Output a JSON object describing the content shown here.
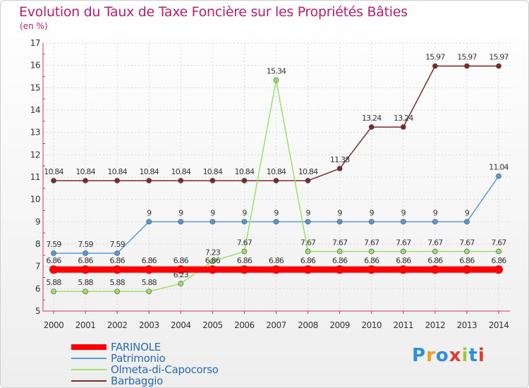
{
  "chart_data": {
    "type": "line",
    "title": "Evolution du Taux de Taxe Foncière sur les Propriétés Bâties",
    "ylabel": "(en %)",
    "xlabel": "",
    "ylim": [
      5,
      17
    ],
    "yticks": [
      "5",
      "6",
      "7",
      "8",
      "9",
      "10",
      "11",
      "12",
      "13",
      "14",
      "15",
      "16",
      "17"
    ],
    "categories": [
      "2000",
      "2001",
      "2002",
      "2003",
      "2004",
      "2005",
      "2006",
      "2007",
      "2008",
      "2009",
      "2010",
      "2011",
      "2012",
      "2013",
      "2014"
    ],
    "series": [
      {
        "name": "FARINOLE",
        "color": "#ff0000",
        "values": [
          6.86,
          6.86,
          6.86,
          6.86,
          6.86,
          6.86,
          6.86,
          6.86,
          6.86,
          6.86,
          6.86,
          6.86,
          6.86,
          6.86,
          6.86
        ],
        "labels": [
          "6.86",
          "6.86",
          "6.86",
          "6.86",
          "6.86",
          "6.86",
          "6.86",
          "6.86",
          "6.86",
          "6.86",
          "6.86",
          "6.86",
          "6.86",
          "6.86",
          "6.86"
        ]
      },
      {
        "name": "Patrimonio",
        "color": "#5b9bd5",
        "values": [
          7.59,
          7.59,
          7.59,
          9,
          9,
          9,
          9,
          9,
          9,
          9,
          9,
          9,
          9,
          9,
          11.04
        ],
        "labels": [
          "7.59",
          "7.59",
          "7.59",
          "9",
          "9",
          "9",
          "9",
          "9",
          "9",
          "9",
          "9",
          "9",
          "9",
          "9",
          "11.04"
        ]
      },
      {
        "name": "Olmeta-di-Capocorso",
        "color": "#9be06a",
        "values": [
          5.88,
          5.88,
          5.88,
          5.88,
          6.23,
          7.23,
          7.67,
          15.34,
          7.67,
          7.67,
          7.67,
          7.67,
          7.67,
          7.67,
          7.67
        ],
        "labels": [
          "5.88",
          "5.88",
          "5.88",
          "5.88",
          "6.23",
          "7.23",
          "7.67",
          "15.34",
          "7.67",
          "7.67",
          "7.67",
          "7.67",
          "7.67",
          "7.67",
          "7.67"
        ]
      },
      {
        "name": "Barbaggio",
        "color": "#7b2b2b",
        "values": [
          10.84,
          10.84,
          10.84,
          10.84,
          10.84,
          10.84,
          10.84,
          10.84,
          10.84,
          11.38,
          13.24,
          13.24,
          15.97,
          15.97,
          15.97
        ],
        "labels": [
          "10.84",
          "10.84",
          "10.84",
          "10.84",
          "10.84",
          "10.84",
          "10.84",
          "10.84",
          "10.84",
          "11.38",
          "13.24",
          "13.24",
          "15.97",
          "15.97",
          "15.97"
        ]
      }
    ]
  },
  "legend": {
    "items": [
      {
        "label": "FARINOLE",
        "color": "#ff0000"
      },
      {
        "label": "Patrimonio",
        "color": "#5b9bd5"
      },
      {
        "label": "Olmeta-di-Capocorso",
        "color": "#9be06a"
      },
      {
        "label": "Barbaggio",
        "color": "#7b2b2b"
      }
    ]
  },
  "logo": {
    "letters": [
      "P",
      "r",
      "o",
      "x",
      "i",
      "t",
      "i"
    ],
    "colors": [
      "#2f8fd8",
      "#f39c1f",
      "#2f8fd8",
      "#e03b2f",
      "#9ccc3c",
      "#2f8fd8",
      "#e03b2f"
    ]
  }
}
